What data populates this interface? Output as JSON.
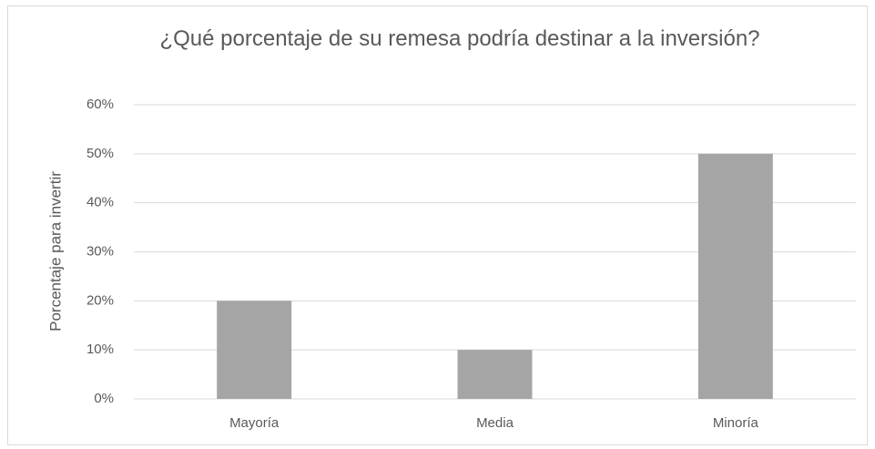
{
  "chart_data": {
    "type": "bar",
    "title": "¿Qué porcentaje de su remesa podría destinar a la inversión?",
    "y_label": "Porcentaje para invertir",
    "categories": [
      "Mayoría",
      "Media",
      "Minoría"
    ],
    "values": [
      20,
      10,
      50
    ],
    "color": "#a5a5a5",
    "ylim": [
      0,
      60
    ],
    "yticks": [
      {
        "value": 0,
        "label": "0%"
      },
      {
        "value": 10,
        "label": "10%"
      },
      {
        "value": 20,
        "label": "20%"
      },
      {
        "value": 30,
        "label": "30%"
      },
      {
        "value": 40,
        "label": "40%"
      },
      {
        "value": 50,
        "label": "50%"
      },
      {
        "value": 60,
        "label": "60%"
      }
    ],
    "grid": true
  }
}
